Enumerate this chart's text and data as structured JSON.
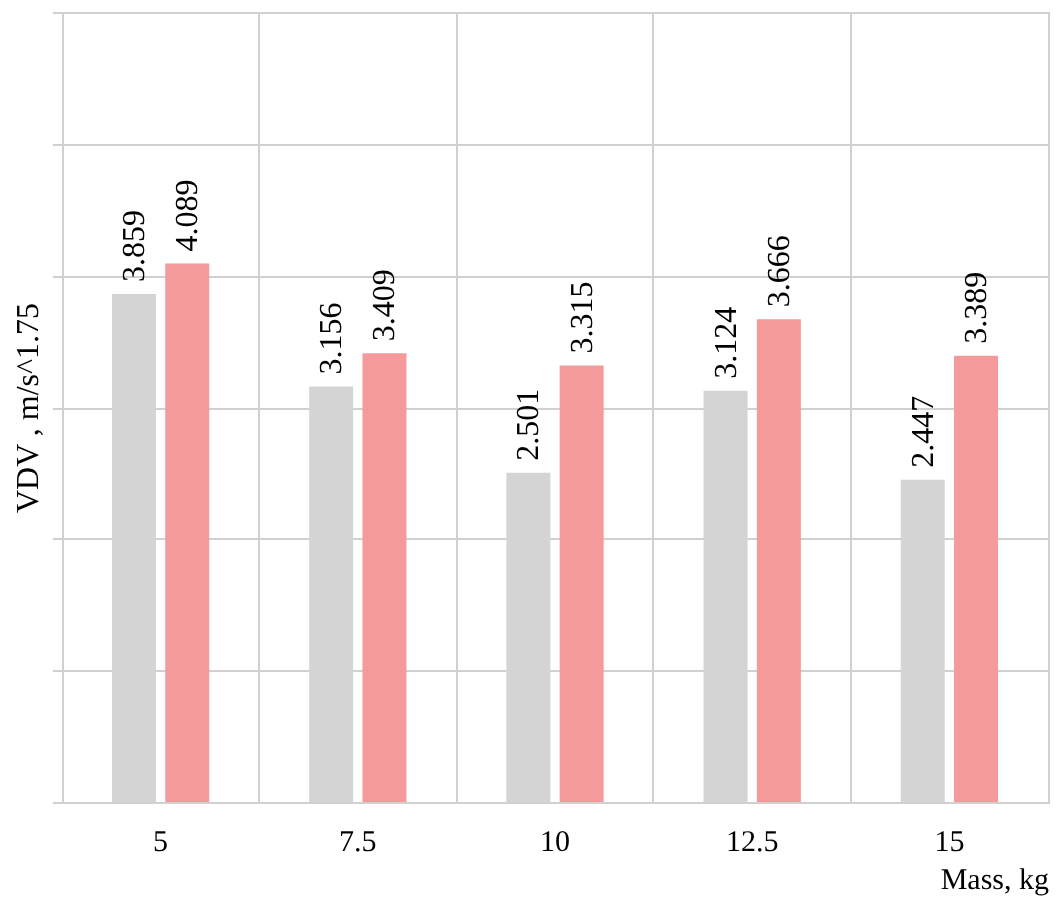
{
  "chart_data": {
    "type": "bar",
    "xlabel": "Mass, kg",
    "ylabel": "VDV , m/s^1.75",
    "categories": [
      "5",
      "7.5",
      "10",
      "12.5",
      "15"
    ],
    "series": [
      {
        "color": "#d4d4d4",
        "values": [
          3.859,
          3.156,
          2.501,
          3.124,
          2.447
        ]
      },
      {
        "color": "#f49a9a",
        "values": [
          4.089,
          3.409,
          3.315,
          3.666,
          3.389
        ]
      }
    ],
    "ylim": [
      0,
      6
    ],
    "yticks": [
      {
        "value": 0,
        "label": null
      },
      {
        "value": 1,
        "label": null
      },
      {
        "value": 2,
        "label": null
      },
      {
        "value": 3,
        "label": null
      },
      {
        "value": 4,
        "label": null
      },
      {
        "value": 5,
        "label": null
      },
      {
        "value": 6,
        "label": null
      }
    ],
    "grid": true,
    "legend": false,
    "tick_labels": "x",
    "data_labels": true
  }
}
